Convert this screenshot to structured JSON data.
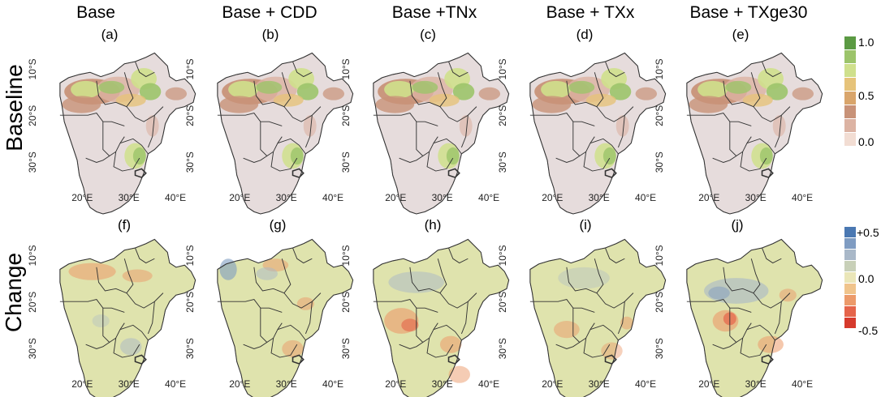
{
  "rows": [
    {
      "id": "baseline",
      "label": "Baseline"
    },
    {
      "id": "change",
      "label": "Change"
    }
  ],
  "columns": [
    {
      "title": "Base",
      "top_panel": "(a)",
      "bottom_panel": "(f)"
    },
    {
      "title": "Base + CDD",
      "top_panel": "(b)",
      "bottom_panel": "(g)"
    },
    {
      "title": "Base +TNx",
      "top_panel": "(c)",
      "bottom_panel": "(h)"
    },
    {
      "title": "Base + TXx",
      "top_panel": "(d)",
      "bottom_panel": "(i)"
    },
    {
      "title": "Base + TXge30",
      "top_panel": "(e)",
      "bottom_panel": "(j)"
    }
  ],
  "axes": {
    "lat_ticks": [
      "10°S",
      "20°S",
      "30°S"
    ],
    "lon_ticks": [
      "20°E",
      "30°E",
      "40°E"
    ]
  },
  "legend_baseline": {
    "labels": [
      "1.0",
      "0.5",
      "0.0"
    ],
    "colors": [
      "#5b9a43",
      "#9cc46a",
      "#cfe08c",
      "#e6c37a",
      "#d9a56b",
      "#c89278",
      "#dcb3a3",
      "#f2ddd3"
    ]
  },
  "legend_change": {
    "labels": [
      "+0.5",
      "0.0",
      "-0.5"
    ],
    "colors": [
      "#4a78b2",
      "#7f9cc2",
      "#a9b8c8",
      "#c8d0b8",
      "#eae6b8",
      "#f0c48c",
      "#ec9a6a",
      "#e5644a",
      "#d63a2c"
    ]
  },
  "colors": {
    "land_base": "#e6dcdc",
    "land_change": "#dfe3ad",
    "border": "#333333"
  }
}
